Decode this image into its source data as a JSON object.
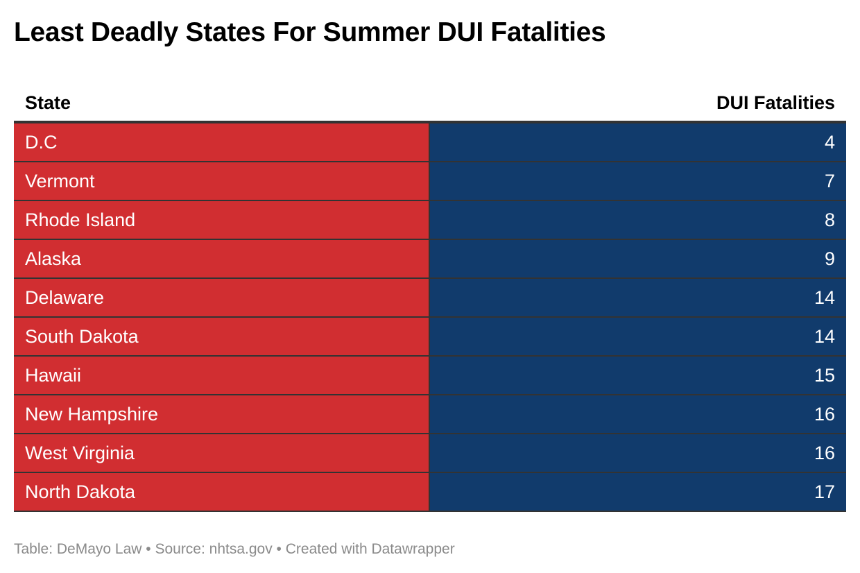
{
  "title": "Least Deadly States For Summer DUI Fatalities",
  "colors": {
    "state_cell": "#d12e31",
    "value_cell": "#113b6c",
    "border": "#333333",
    "footer_text": "#8a8a8a"
  },
  "chart_data": {
    "type": "table",
    "title": "Least Deadly States For Summer DUI Fatalities",
    "columns": [
      "State",
      "DUI Fatalities"
    ],
    "rows": [
      {
        "state": "D.C",
        "value": "4"
      },
      {
        "state": "Vermont",
        "value": "7"
      },
      {
        "state": "Rhode Island",
        "value": "8"
      },
      {
        "state": "Alaska",
        "value": "9"
      },
      {
        "state": "Delaware",
        "value": "14"
      },
      {
        "state": "South Dakota",
        "value": "14"
      },
      {
        "state": "Hawaii",
        "value": "15"
      },
      {
        "state": "New Hampshire",
        "value": "16"
      },
      {
        "state": "West Virginia",
        "value": "16"
      },
      {
        "state": "North Dakota",
        "value": "17"
      }
    ]
  },
  "footer": "Table: DeMayo Law • Source: nhtsa.gov • Created with Datawrapper"
}
